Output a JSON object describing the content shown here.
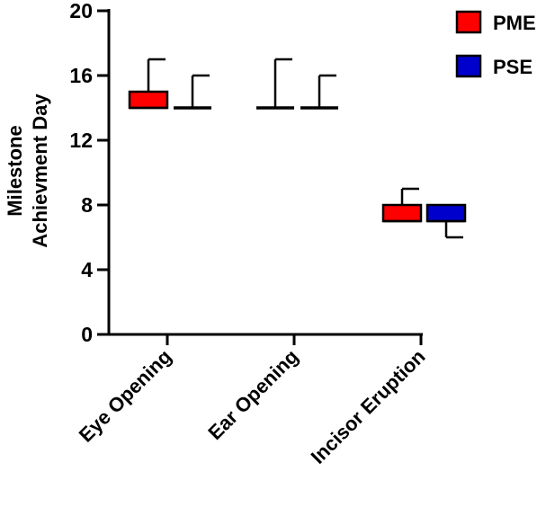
{
  "chart_data": {
    "type": "box",
    "ylabel_line1": "Milestone",
    "ylabel_line2": "Achievment Day",
    "ylim": [
      0,
      20
    ],
    "yticks": [
      "0",
      "4",
      "8",
      "12",
      "16",
      "20"
    ],
    "categories": [
      "Eye Opening",
      "Ear Opening",
      "Incisor Eruption"
    ],
    "series": [
      {
        "name": "PME",
        "color": "#ff0000",
        "boxes": [
          {
            "min": 14,
            "q1": 14,
            "median": 14,
            "q3": 15,
            "max": 17
          },
          {
            "min": 14,
            "q1": 14,
            "median": 14,
            "q3": 14,
            "max": 17
          },
          {
            "min": 7,
            "q1": 7,
            "median": 7,
            "q3": 8,
            "max": 9
          }
        ]
      },
      {
        "name": "PSE",
        "color": "#0000cc",
        "boxes": [
          {
            "min": 14,
            "q1": 14,
            "median": 14,
            "q3": 14,
            "max": 16
          },
          {
            "min": 14,
            "q1": 14,
            "median": 14,
            "q3": 14,
            "max": 16
          },
          {
            "min": 6,
            "q1": 7,
            "median": 7,
            "q3": 8,
            "max": 8
          }
        ]
      }
    ],
    "legend_position": "top-right"
  }
}
